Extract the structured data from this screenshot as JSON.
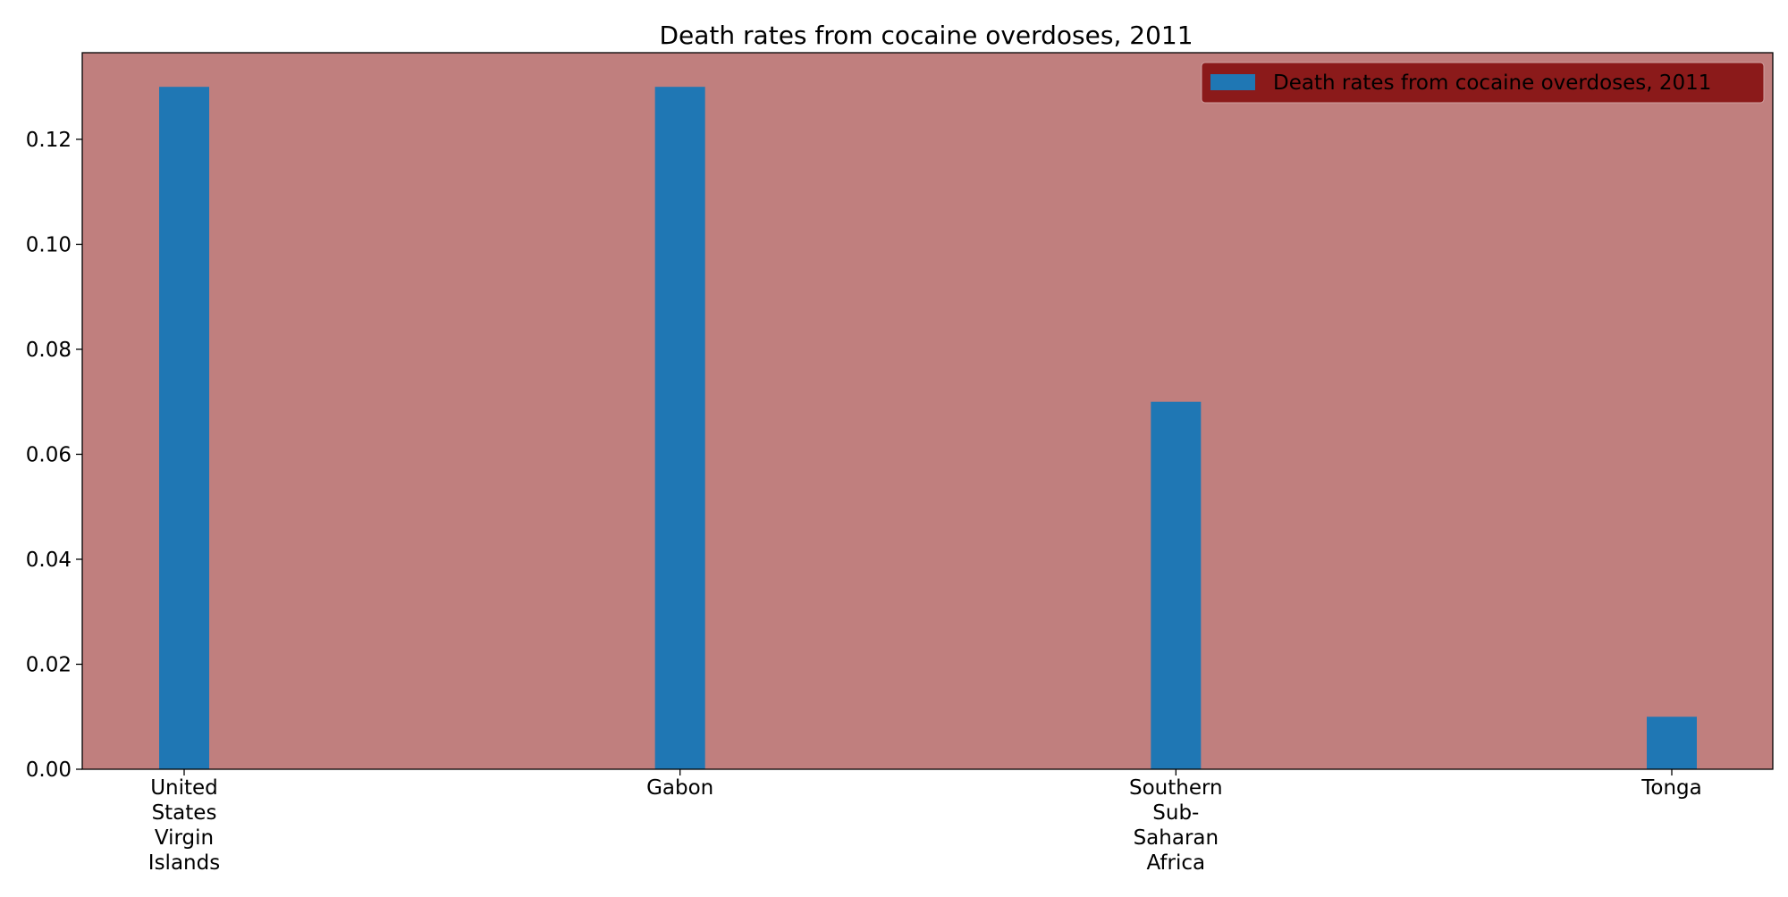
{
  "chart_data": {
    "type": "bar",
    "title": "Death rates from cocaine overdoses, 2011",
    "xlabel": "",
    "ylabel": "",
    "categories": [
      [
        "United",
        "States",
        "Virgin",
        "Islands"
      ],
      [
        "Gabon"
      ],
      [
        "Southern",
        "Sub-",
        "Saharan",
        "Africa"
      ],
      [
        "Tonga"
      ]
    ],
    "series": [
      {
        "name": "Death rates from cocaine overdoses, 2011",
        "values": [
          0.13,
          0.13,
          0.07,
          0.01
        ],
        "color": "#1f77b4"
      }
    ],
    "ylim": [
      0,
      0.1365
    ],
    "yticks": [
      "0.00",
      "0.02",
      "0.04",
      "0.06",
      "0.08",
      "0.10",
      "0.12"
    ],
    "grid": false,
    "legend_position": "top-right",
    "plot_background": "#c07f7e",
    "legend_background": "#8b1a1a"
  }
}
